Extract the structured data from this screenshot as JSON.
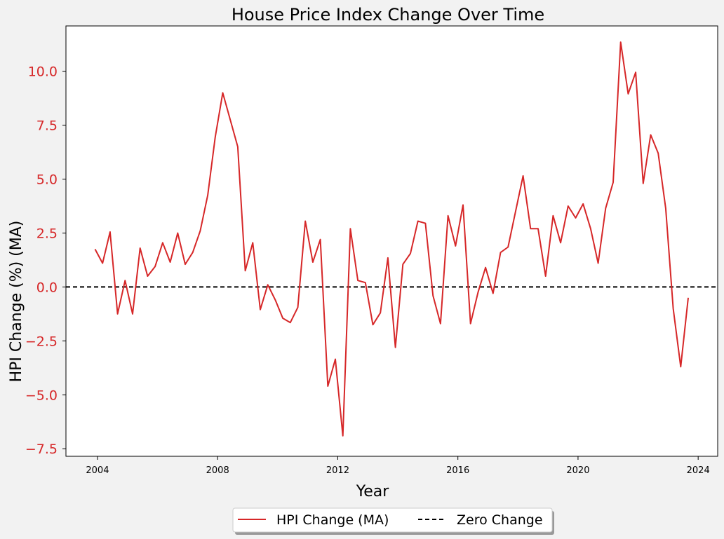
{
  "chart_data": {
    "type": "line",
    "title": "House Price Index Change Over Time",
    "xlabel": "Year",
    "ylabel": "HPI Change (%) (MA)",
    "xlim": [
      2002.95,
      2024.65
    ],
    "ylim": [
      -7.85,
      12.1
    ],
    "xticks": [
      2004,
      2008,
      2012,
      2016,
      2020,
      2024
    ],
    "xtick_labels": [
      "2004",
      "2008",
      "2012",
      "2016",
      "2020",
      "2024"
    ],
    "yticks": [
      -7.5,
      -5.0,
      -2.5,
      0.0,
      2.5,
      5.0,
      7.5,
      10.0
    ],
    "ytick_labels": [
      "−7.5",
      "−5.0",
      "−2.5",
      "0.0",
      "2.5",
      "5.0",
      "7.5",
      "10.0"
    ],
    "grid": false,
    "legend_position": "bottom-center, below plot",
    "series": [
      {
        "name": "HPI Change (MA)",
        "style": "solid",
        "color": "#d62728",
        "x": [
          2003.92,
          2004.17,
          2004.42,
          2004.67,
          2004.92,
          2005.17,
          2005.42,
          2005.67,
          2005.92,
          2006.17,
          2006.42,
          2006.67,
          2006.92,
          2007.17,
          2007.42,
          2007.67,
          2007.92,
          2008.17,
          2008.42,
          2008.67,
          2008.92,
          2009.17,
          2009.42,
          2009.67,
          2009.92,
          2010.17,
          2010.42,
          2010.67,
          2010.92,
          2011.17,
          2011.42,
          2011.67,
          2011.92,
          2012.17,
          2012.42,
          2012.67,
          2012.92,
          2013.17,
          2013.42,
          2013.67,
          2013.92,
          2014.17,
          2014.42,
          2014.67,
          2014.92,
          2015.17,
          2015.42,
          2015.67,
          2015.92,
          2016.17,
          2016.42,
          2016.67,
          2016.92,
          2017.17,
          2017.42,
          2017.67,
          2017.92,
          2018.17,
          2018.42,
          2018.67,
          2018.92,
          2019.17,
          2019.42,
          2019.67,
          2019.92,
          2020.17,
          2020.42,
          2020.67,
          2020.92,
          2021.17,
          2021.42,
          2021.67,
          2021.92,
          2022.17,
          2022.42,
          2022.67,
          2022.92,
          2023.17,
          2023.42,
          2023.67
        ],
        "y": [
          1.75,
          1.1,
          2.55,
          -1.25,
          0.3,
          -1.25,
          1.8,
          0.5,
          0.95,
          2.05,
          1.15,
          2.5,
          1.05,
          1.6,
          2.6,
          4.25,
          6.95,
          9.0,
          7.75,
          6.5,
          0.75,
          2.05,
          -1.05,
          0.1,
          -0.6,
          -1.45,
          -1.65,
          -0.95,
          3.05,
          1.15,
          2.2,
          -4.6,
          -3.35,
          -6.9,
          2.7,
          0.3,
          0.2,
          -1.75,
          -1.2,
          1.35,
          -2.8,
          1.05,
          1.55,
          3.05,
          2.95,
          -0.4,
          -1.7,
          3.3,
          1.9,
          3.8,
          -1.7,
          -0.25,
          0.9,
          -0.3,
          1.6,
          1.85,
          3.5,
          5.15,
          2.7,
          2.7,
          0.5,
          3.3,
          2.05,
          3.75,
          3.2,
          3.85,
          2.7,
          1.1,
          3.65,
          4.85,
          11.35,
          8.95,
          9.95,
          4.8,
          7.05,
          6.2,
          3.65,
          -1.0,
          -3.7,
          -0.5
        ]
      },
      {
        "name": "Zero Change",
        "style": "dashed",
        "color": "#000000",
        "y_constant": 0
      }
    ]
  },
  "colors": {
    "series_line": "#d62728",
    "ytick_label": "#d62728",
    "zero_line": "#000000",
    "background": "#f2f2f2",
    "plot_background": "#ffffff"
  }
}
